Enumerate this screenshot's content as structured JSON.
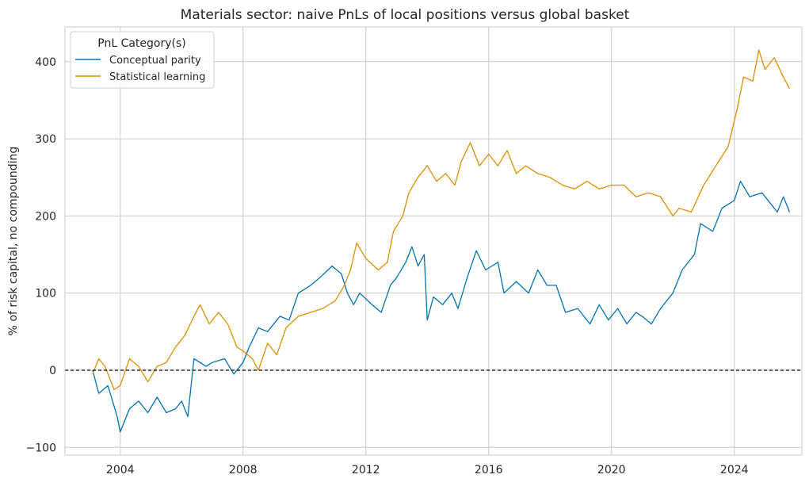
{
  "chart_data": {
    "type": "line",
    "title": "Materials sector: naive PnLs of local positions versus global basket",
    "xlabel": "",
    "ylabel": "% of risk capital, no compounding",
    "xlim": [
      2002.2,
      2026.2
    ],
    "ylim": [
      -110,
      445
    ],
    "xticks": [
      2004,
      2008,
      2012,
      2016,
      2020,
      2024
    ],
    "yticks": [
      -100,
      0,
      100,
      200,
      300,
      400
    ],
    "grid": true,
    "reference_line": 0,
    "legend": {
      "title": "PnL Category(s)",
      "placement": "top-left"
    },
    "series": [
      {
        "name": "Conceptual parity",
        "color": "#0173b2",
        "x": [
          2003.1,
          2003.3,
          2003.6,
          2003.9,
          2004.0,
          2004.3,
          2004.6,
          2004.9,
          2005.2,
          2005.5,
          2005.8,
          2006.0,
          2006.2,
          2006.4,
          2006.8,
          2007.0,
          2007.4,
          2007.7,
          2008.0,
          2008.2,
          2008.5,
          2008.8,
          2009.2,
          2009.5,
          2009.8,
          2010.2,
          2010.5,
          2010.9,
          2011.2,
          2011.4,
          2011.6,
          2011.8,
          2012.2,
          2012.5,
          2012.8,
          2013.0,
          2013.3,
          2013.5,
          2013.7,
          2013.9,
          2014.0,
          2014.2,
          2014.5,
          2014.8,
          2015.0,
          2015.3,
          2015.6,
          2015.9,
          2016.3,
          2016.5,
          2016.9,
          2017.3,
          2017.6,
          2017.9,
          2018.2,
          2018.5,
          2018.9,
          2019.3,
          2019.6,
          2019.9,
          2020.2,
          2020.5,
          2020.8,
          2021.0,
          2021.3,
          2021.6,
          2022.0,
          2022.3,
          2022.7,
          2022.9,
          2023.3,
          2023.6,
          2024.0,
          2024.2,
          2024.5,
          2024.9,
          2025.2,
          2025.4,
          2025.6,
          2025.8
        ],
        "y": [
          0,
          -30,
          -20,
          -60,
          -80,
          -50,
          -40,
          -55,
          -35,
          -55,
          -50,
          -40,
          -60,
          15,
          5,
          10,
          15,
          -5,
          10,
          30,
          55,
          50,
          70,
          65,
          100,
          110,
          120,
          135,
          125,
          100,
          85,
          100,
          85,
          75,
          110,
          120,
          140,
          160,
          135,
          150,
          65,
          95,
          85,
          100,
          80,
          120,
          155,
          130,
          140,
          100,
          115,
          100,
          130,
          110,
          110,
          75,
          80,
          60,
          85,
          65,
          80,
          60,
          75,
          70,
          60,
          80,
          100,
          130,
          150,
          190,
          180,
          210,
          220,
          245,
          225,
          230,
          215,
          205,
          225,
          205
        ]
      },
      {
        "name": "Statistical learning",
        "color": "#de8f05",
        "x": [
          2003.1,
          2003.3,
          2003.5,
          2003.8,
          2004.0,
          2004.3,
          2004.6,
          2004.9,
          2005.2,
          2005.5,
          2005.8,
          2006.1,
          2006.4,
          2006.6,
          2006.9,
          2007.2,
          2007.5,
          2007.8,
          2008.0,
          2008.3,
          2008.5,
          2008.8,
          2009.1,
          2009.4,
          2009.8,
          2010.2,
          2010.6,
          2011.0,
          2011.3,
          2011.5,
          2011.7,
          2012.0,
          2012.4,
          2012.7,
          2012.9,
          2013.2,
          2013.4,
          2013.7,
          2014.0,
          2014.3,
          2014.6,
          2014.9,
          2015.1,
          2015.4,
          2015.7,
          2016.0,
          2016.3,
          2016.6,
          2016.9,
          2017.2,
          2017.6,
          2018.0,
          2018.4,
          2018.8,
          2019.2,
          2019.6,
          2020.0,
          2020.4,
          2020.8,
          2021.2,
          2021.6,
          2022.0,
          2022.2,
          2022.6,
          2023.0,
          2023.4,
          2023.8,
          2024.1,
          2024.3,
          2024.6,
          2024.8,
          2025.0,
          2025.3,
          2025.6,
          2025.8
        ],
        "y": [
          -5,
          15,
          5,
          -25,
          -20,
          15,
          5,
          -15,
          5,
          10,
          30,
          45,
          70,
          85,
          60,
          75,
          60,
          30,
          25,
          15,
          0,
          35,
          20,
          55,
          70,
          75,
          80,
          90,
          110,
          130,
          165,
          145,
          130,
          140,
          180,
          200,
          230,
          250,
          265,
          245,
          255,
          240,
          270,
          295,
          265,
          280,
          265,
          285,
          255,
          265,
          255,
          250,
          240,
          235,
          245,
          235,
          240,
          240,
          225,
          230,
          225,
          200,
          210,
          205,
          240,
          265,
          290,
          340,
          380,
          375,
          415,
          390,
          405,
          380,
          365
        ]
      }
    ]
  }
}
